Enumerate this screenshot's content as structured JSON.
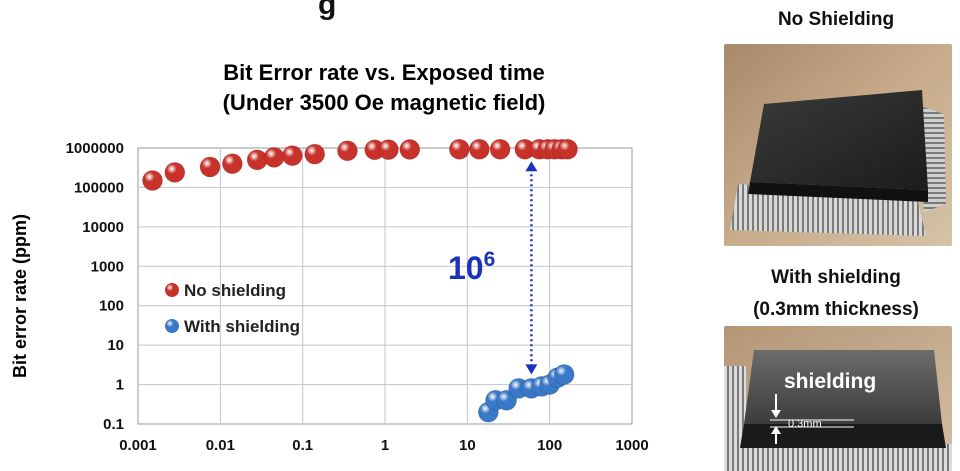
{
  "header": {
    "partial_title": "g"
  },
  "chart_data": {
    "type": "scatter",
    "title_line1": "Bit Error rate vs. Exposed time",
    "title_line2": "(Under 3500 Oe magnetic field)",
    "xlabel": "",
    "ylabel": "Bit error rate  (ppm)",
    "x_scale": "log",
    "y_scale": "log",
    "xlim": [
      0.001,
      1000
    ],
    "ylim": [
      0.1,
      1000000
    ],
    "x_ticks": [
      "0.001",
      "0.01",
      "0.1",
      "1",
      "10",
      "100",
      "1000"
    ],
    "y_ticks": [
      "0.1",
      "1",
      "10",
      "100",
      "1000",
      "10000",
      "100000",
      "1000000"
    ],
    "grid": true,
    "legend_position": "inside-left",
    "series": [
      {
        "name": "No shielding",
        "color": "#c8322a",
        "points": [
          [
            0.0015,
            150000
          ],
          [
            0.0028,
            240000
          ],
          [
            0.0075,
            330000
          ],
          [
            0.014,
            400000
          ],
          [
            0.028,
            500000
          ],
          [
            0.045,
            580000
          ],
          [
            0.075,
            640000
          ],
          [
            0.14,
            700000
          ],
          [
            0.35,
            850000
          ],
          [
            0.75,
            900000
          ],
          [
            1.1,
            910000
          ],
          [
            2.0,
            920000
          ],
          [
            8.0,
            930000
          ],
          [
            14.0,
            930000
          ],
          [
            25.0,
            930000
          ],
          [
            50.0,
            930000
          ],
          [
            75.0,
            930000
          ],
          [
            95.0,
            930000
          ],
          [
            115.0,
            930000
          ],
          [
            140.0,
            930000
          ],
          [
            165.0,
            930000
          ]
        ]
      },
      {
        "name": "With shielding",
        "color": "#3a78c8",
        "points": [
          [
            18.0,
            0.2
          ],
          [
            22.0,
            0.4
          ],
          [
            30.0,
            0.4
          ],
          [
            42.0,
            0.8
          ],
          [
            60.0,
            0.8
          ],
          [
            80.0,
            0.9
          ],
          [
            100.0,
            1.0
          ],
          [
            125.0,
            1.5
          ],
          [
            150.0,
            1.8
          ]
        ]
      }
    ],
    "annotation": {
      "base": "10",
      "exponent": "6",
      "arrow_x": 60,
      "arrow_from": 0.9,
      "arrow_to": 930000,
      "color": "#1a33b8"
    }
  },
  "photos": {
    "top_label": "No Shielding",
    "bottom_label_line1": "With shielding",
    "bottom_label_line2": "(0.3mm thickness)",
    "shield_text": "shielding",
    "thickness_text": "0.3mm"
  }
}
